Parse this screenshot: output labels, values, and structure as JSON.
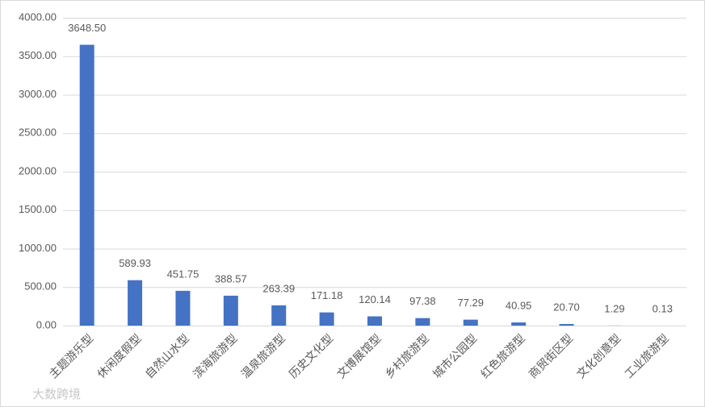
{
  "chart_data": {
    "type": "bar",
    "categories": [
      "主题游乐型",
      "休闲度假型",
      "自然山水型",
      "滨海旅游型",
      "温泉旅游型",
      "历史文化型",
      "文博展馆型",
      "乡村旅游型",
      "城市公园型",
      "红色旅游型",
      "商贸街区型",
      "文化创意型",
      "工业旅游型"
    ],
    "values": [
      3648.5,
      589.93,
      451.75,
      388.57,
      263.39,
      171.18,
      120.14,
      97.38,
      77.29,
      40.95,
      20.7,
      1.29,
      0.13
    ],
    "value_labels": [
      "3648.50",
      "589.93",
      "451.75",
      "388.57",
      "263.39",
      "171.18",
      "120.14",
      "97.38",
      "77.29",
      "40.95",
      "20.70",
      "1.29",
      "0.13"
    ],
    "color": "#4472c4",
    "ylim": [
      0,
      4000
    ],
    "yticks": [
      {
        "value": 0,
        "label": "0.00"
      },
      {
        "value": 500,
        "label": "500.00"
      },
      {
        "value": 1000,
        "label": "1000.00"
      },
      {
        "value": 1500,
        "label": "1500.00"
      },
      {
        "value": 2000,
        "label": "2000.00"
      },
      {
        "value": 2500,
        "label": "2500.00"
      },
      {
        "value": 3000,
        "label": "3000.00"
      },
      {
        "value": 3500,
        "label": "3500.00"
      },
      {
        "value": 4000,
        "label": "4000.00"
      }
    ],
    "grid": true,
    "watermark": "大数跨境"
  }
}
